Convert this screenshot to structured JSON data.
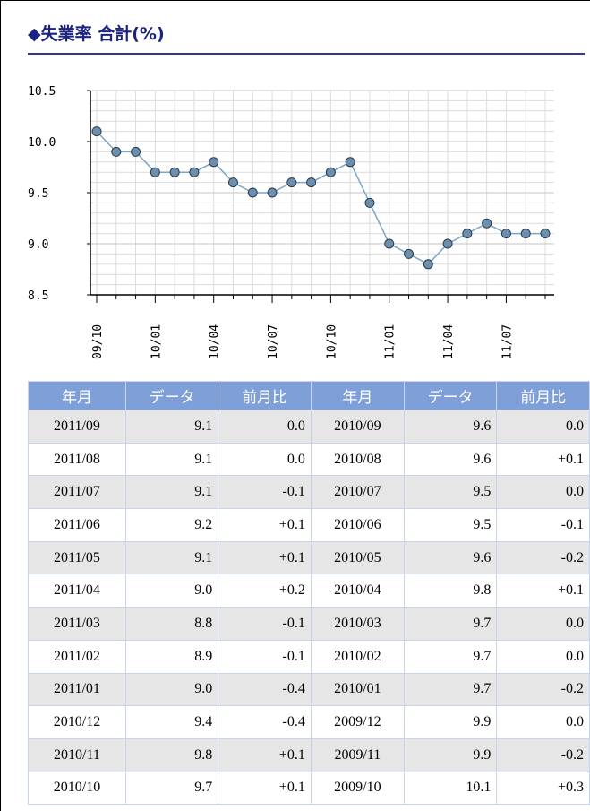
{
  "title": "◆失業率 合計(%)",
  "chart_data": {
    "type": "line",
    "categories": [
      "09/10",
      null,
      null,
      "10/01",
      null,
      null,
      "10/04",
      null,
      null,
      "10/07",
      null,
      null,
      "10/10",
      null,
      null,
      "11/01",
      null,
      null,
      "11/04",
      null,
      null,
      "11/07",
      null,
      null
    ],
    "values": [
      10.1,
      9.9,
      9.9,
      9.7,
      9.7,
      9.7,
      9.8,
      9.6,
      9.5,
      9.5,
      9.6,
      9.6,
      9.7,
      9.8,
      9.4,
      9.0,
      8.9,
      8.8,
      9.0,
      9.1,
      9.2,
      9.1,
      9.1,
      9.1
    ],
    "color": "#7aa6c8",
    "marker_color": "#6d8fae",
    "ylim": [
      8.5,
      10.5
    ],
    "yticks": [
      8.5,
      {
        "value": 9,
        "label": "9.0"
      },
      9.5,
      {
        "value": 10,
        "label": "10.0"
      },
      10.5
    ],
    "yminorticks": [
      8.6,
      8.7,
      8.8,
      8.9,
      9.1,
      9.2,
      9.3,
      9.4,
      9.6,
      9.7,
      9.8,
      9.9,
      10.1,
      10.2,
      10.3,
      10.4
    ],
    "grid": true
  },
  "table": {
    "header": [
      "年月",
      "データ",
      "前月比",
      "年月",
      "データ",
      "前月比"
    ],
    "rows": [
      [
        "2011/09",
        "9.1",
        "0.0",
        "2010/09",
        "9.6",
        "0.0"
      ],
      [
        "2011/08",
        "9.1",
        "0.0",
        "2010/08",
        "9.6",
        "+0.1"
      ],
      [
        "2011/07",
        "9.1",
        "-0.1",
        "2010/07",
        "9.5",
        "0.0"
      ],
      [
        "2011/06",
        "9.2",
        "+0.1",
        "2010/06",
        "9.5",
        "-0.1"
      ],
      [
        "2011/05",
        "9.1",
        "+0.1",
        "2010/05",
        "9.6",
        "-0.2"
      ],
      [
        "2011/04",
        "9.0",
        "+0.2",
        "2010/04",
        "9.8",
        "+0.1"
      ],
      [
        "2011/03",
        "8.8",
        "-0.1",
        "2010/03",
        "9.7",
        "0.0"
      ],
      [
        "2011/02",
        "8.9",
        "-0.1",
        "2010/02",
        "9.7",
        "0.0"
      ],
      [
        "2011/01",
        "9.0",
        "-0.4",
        "2010/01",
        "9.7",
        "-0.2"
      ],
      [
        "2010/12",
        "9.4",
        "-0.4",
        "2009/12",
        "9.9",
        "0.0"
      ],
      [
        "2010/11",
        "9.8",
        "+0.1",
        "2009/11",
        "9.9",
        "-0.2"
      ],
      [
        "2010/10",
        "9.7",
        "+0.1",
        "2009/10",
        "10.1",
        "+0.3"
      ]
    ]
  }
}
